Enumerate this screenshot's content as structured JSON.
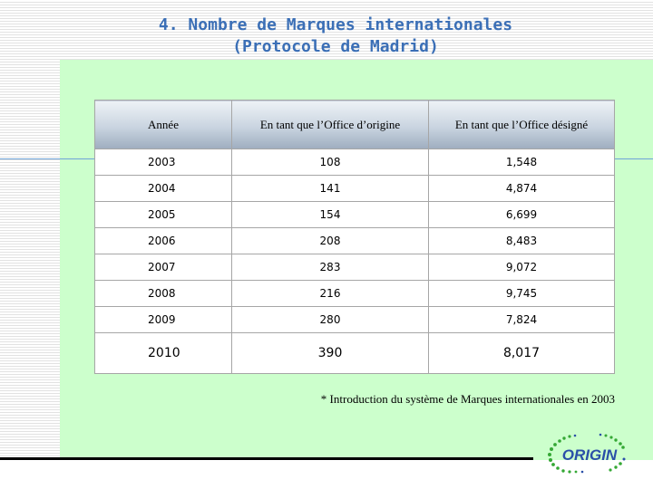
{
  "title": {
    "line1": "4. Nombre de Marques internationales",
    "line2": "(Protocole de Madrid)"
  },
  "table": {
    "headers": [
      "Année",
      "En tant que l’Office d’origine",
      "En tant que l’Office désigné"
    ],
    "rows": [
      [
        "2003",
        "108",
        "1,548"
      ],
      [
        "2004",
        "141",
        "4,874"
      ],
      [
        "2005",
        "154",
        "6,699"
      ],
      [
        "2006",
        "208",
        "8,483"
      ],
      [
        "2007",
        "283",
        "9,072"
      ],
      [
        "2008",
        "216",
        "9,745"
      ],
      [
        "2009",
        "280",
        "7,824"
      ],
      [
        "2010",
        "390",
        "8,017"
      ]
    ]
  },
  "footnote": "* Introduction du système de Marques internationales en 2003",
  "logo": {
    "text": "ORIGIN"
  },
  "colors": {
    "title": "#3b6fb6",
    "green_panel": "#ccffcc",
    "logo": "#2a4fa8",
    "logo_dots": "#35a835"
  }
}
